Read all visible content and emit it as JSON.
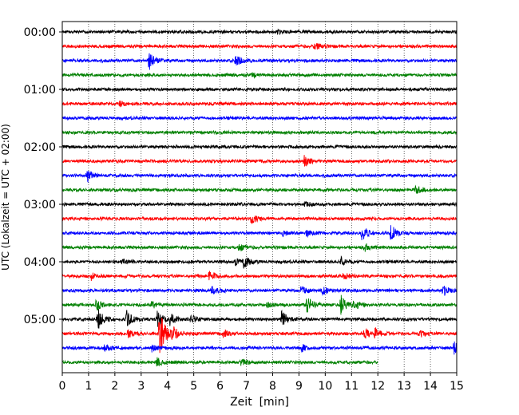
{
  "chart_data": {
    "type": "line",
    "xlabel": "Zeit  [min]",
    "ylabel": "UTC (Lokalzeit = UTC + 02:00)",
    "xlim": [
      0,
      15
    ],
    "x_ticks": [
      0,
      1,
      2,
      3,
      4,
      5,
      6,
      7,
      8,
      9,
      10,
      11,
      12,
      13,
      14,
      15
    ],
    "y_tick_labels": [
      "00:00",
      "01:00",
      "02:00",
      "03:00",
      "04:00",
      "05:00"
    ],
    "grid": "vertical dotted at each minute",
    "trace_interval_min": 15,
    "colors": [
      "#000000",
      "#ff0000",
      "#0000ff",
      "#008000"
    ],
    "series": [
      {
        "start": "00:00",
        "end_min": 15,
        "events": [
          [
            8.2,
            0.18
          ]
        ]
      },
      {
        "start": "00:15",
        "end_min": 15,
        "events": [
          [
            9.6,
            0.45
          ]
        ]
      },
      {
        "start": "00:30",
        "end_min": 15,
        "events": [
          [
            3.3,
            1.0
          ],
          [
            6.6,
            0.55
          ]
        ]
      },
      {
        "start": "00:45",
        "end_min": 15,
        "events": [
          [
            7.2,
            0.2
          ]
        ]
      },
      {
        "start": "01:00",
        "end_min": 15,
        "events": []
      },
      {
        "start": "01:15",
        "end_min": 15,
        "events": [
          [
            2.2,
            0.25
          ]
        ]
      },
      {
        "start": "01:30",
        "end_min": 15,
        "events": []
      },
      {
        "start": "01:45",
        "end_min": 15,
        "events": []
      },
      {
        "start": "02:00",
        "end_min": 15,
        "events": []
      },
      {
        "start": "02:15",
        "end_min": 15,
        "events": [
          [
            9.2,
            0.6
          ]
        ]
      },
      {
        "start": "02:30",
        "end_min": 15,
        "events": [
          [
            0.95,
            0.6
          ]
        ]
      },
      {
        "start": "02:45",
        "end_min": 15,
        "events": [
          [
            13.45,
            0.55
          ]
        ]
      },
      {
        "start": "03:00",
        "end_min": 15,
        "events": [
          [
            9.2,
            0.2
          ]
        ]
      },
      {
        "start": "03:15",
        "end_min": 15,
        "events": [
          [
            7.2,
            0.45
          ]
        ]
      },
      {
        "start": "03:30",
        "end_min": 15,
        "events": [
          [
            8.4,
            0.25
          ],
          [
            9.3,
            0.3
          ],
          [
            11.4,
            0.75
          ],
          [
            12.5,
            0.85
          ]
        ]
      },
      {
        "start": "03:45",
        "end_min": 15,
        "events": [
          [
            6.7,
            0.4
          ],
          [
            11.5,
            0.35
          ]
        ]
      },
      {
        "start": "04:00",
        "end_min": 15,
        "events": [
          [
            2.3,
            0.25
          ],
          [
            6.6,
            0.4
          ],
          [
            6.9,
            0.55
          ],
          [
            10.6,
            0.45
          ]
        ]
      },
      {
        "start": "04:15",
        "end_min": 15,
        "events": [
          [
            1.1,
            0.35
          ],
          [
            5.6,
            0.6
          ],
          [
            10.7,
            0.35
          ]
        ]
      },
      {
        "start": "04:30",
        "end_min": 15,
        "events": [
          [
            5.7,
            0.4
          ],
          [
            9.1,
            0.45
          ],
          [
            9.9,
            0.45
          ],
          [
            14.5,
            0.55
          ]
        ]
      },
      {
        "start": "04:45",
        "end_min": 15,
        "events": [
          [
            1.3,
            0.6
          ],
          [
            3.4,
            0.35
          ],
          [
            7.8,
            0.3
          ],
          [
            9.3,
            0.9
          ],
          [
            10.6,
            1.0
          ],
          [
            11.1,
            0.45
          ]
        ]
      },
      {
        "start": "05:00",
        "end_min": 15,
        "events": [
          [
            1.35,
            1.1
          ],
          [
            2.45,
            0.85
          ],
          [
            3.6,
            0.8
          ],
          [
            4.1,
            0.6
          ],
          [
            4.9,
            0.45
          ],
          [
            8.35,
            0.9
          ]
        ]
      },
      {
        "start": "05:15",
        "end_min": 15,
        "events": [
          [
            2.5,
            0.4
          ],
          [
            3.7,
            2.6
          ],
          [
            4.2,
            0.6
          ],
          [
            6.1,
            0.45
          ],
          [
            11.5,
            0.55
          ],
          [
            11.9,
            0.5
          ],
          [
            13.6,
            0.35
          ]
        ]
      },
      {
        "start": "05:30",
        "end_min": 15,
        "events": [
          [
            1.6,
            0.35
          ],
          [
            3.4,
            0.35
          ],
          [
            9.1,
            0.35
          ],
          [
            14.9,
            0.6
          ]
        ]
      },
      {
        "start": "05:45",
        "end_min": 12,
        "events": [
          [
            3.6,
            0.45
          ],
          [
            6.8,
            0.3
          ]
        ]
      }
    ]
  }
}
